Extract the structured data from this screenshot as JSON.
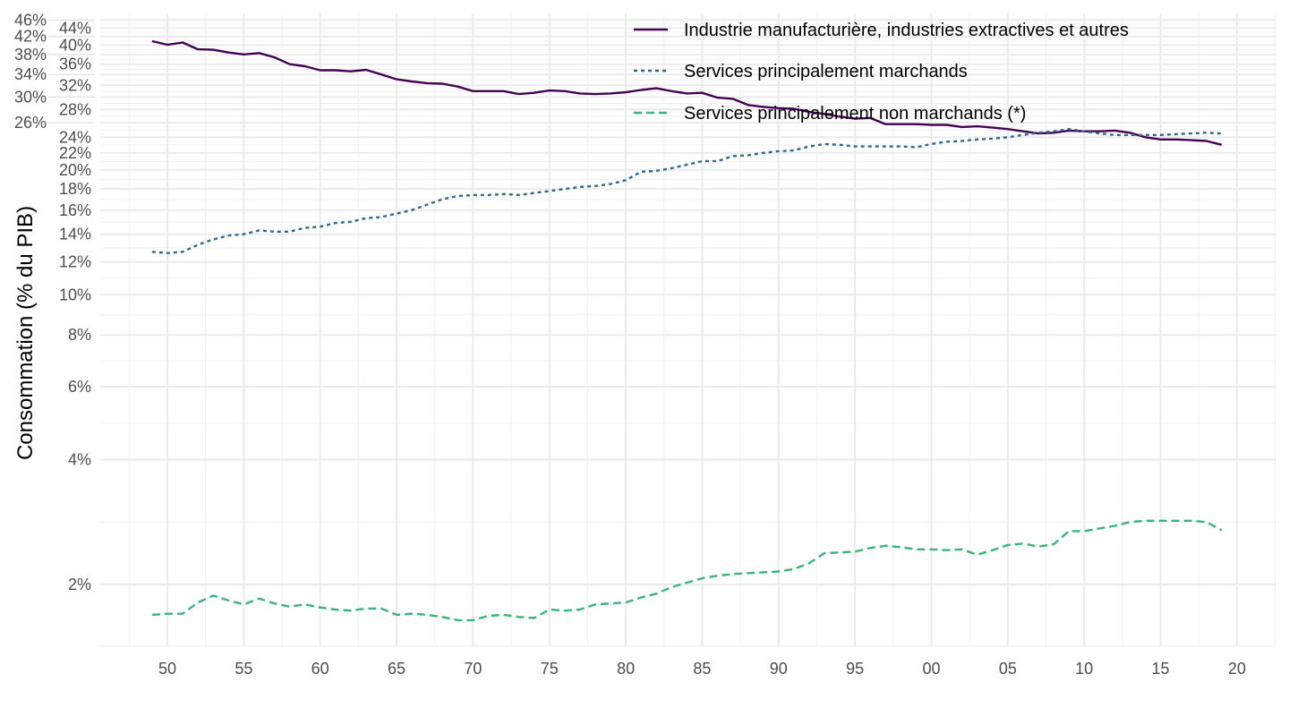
{
  "chart_data": {
    "type": "line",
    "title": "",
    "xlabel": "",
    "ylabel": "Consommation (% du PIB)",
    "y_scale": "log",
    "ylim": [
      1.42,
      47
    ],
    "xlim": [
      1947,
      2022.5
    ],
    "grid": true,
    "legend_position": "top-right",
    "x_ticks": [
      1950,
      1955,
      1960,
      1965,
      1970,
      1975,
      1980,
      1985,
      1990,
      1995,
      2000,
      2005,
      2010,
      2015,
      2020
    ],
    "x_tick_labels": [
      "50",
      "55",
      "60",
      "65",
      "70",
      "75",
      "80",
      "85",
      "90",
      "95",
      "00",
      "05",
      "10",
      "15",
      "20"
    ],
    "y_ticks": [
      2,
      4,
      6,
      8,
      10,
      12,
      14,
      16,
      18,
      20,
      22,
      24,
      26,
      28,
      30,
      32,
      34,
      36,
      38,
      40,
      42,
      44,
      46
    ],
    "y_tick_labels": [
      "2%",
      "4%",
      "6%",
      "8%",
      "10%",
      "12%",
      "14%",
      "16%",
      "18%",
      "20%",
      "22%",
      "24%",
      "26%",
      "28%",
      "30%",
      "32%",
      "34%",
      "36%",
      "38%",
      "40%",
      "42%",
      "44%",
      "46%"
    ],
    "x": [
      1949,
      1950,
      1951,
      1952,
      1953,
      1954,
      1955,
      1956,
      1957,
      1958,
      1959,
      1960,
      1961,
      1962,
      1963,
      1964,
      1965,
      1966,
      1967,
      1968,
      1969,
      1970,
      1971,
      1972,
      1973,
      1974,
      1975,
      1976,
      1977,
      1978,
      1979,
      1980,
      1981,
      1982,
      1983,
      1984,
      1985,
      1986,
      1987,
      1988,
      1989,
      1990,
      1991,
      1992,
      1993,
      1994,
      1995,
      1996,
      1997,
      1998,
      1999,
      2000,
      2001,
      2002,
      2003,
      2004,
      2005,
      2006,
      2007,
      2008,
      2009,
      2010,
      2011,
      2012,
      2013,
      2014,
      2015,
      2016,
      2017,
      2018,
      2019
    ],
    "series": [
      {
        "name": "Industrie manufacturière, industries extractives et autres",
        "color": "#440154",
        "dash": "solid",
        "values": [
          40.9,
          40.1,
          40.6,
          39.1,
          39.0,
          38.4,
          38.0,
          38.3,
          37.4,
          36.0,
          35.6,
          34.8,
          34.8,
          34.6,
          34.9,
          34.0,
          33.1,
          32.7,
          32.4,
          32.3,
          31.8,
          31.0,
          31.0,
          31.0,
          30.5,
          30.7,
          31.1,
          31.0,
          30.6,
          30.5,
          30.6,
          30.8,
          31.2,
          31.5,
          31.0,
          30.6,
          30.7,
          29.9,
          29.7,
          28.7,
          28.4,
          28.2,
          28.1,
          27.6,
          27.3,
          26.9,
          26.6,
          26.7,
          25.8,
          25.8,
          25.8,
          25.7,
          25.7,
          25.4,
          25.5,
          25.3,
          25.1,
          24.8,
          24.5,
          24.6,
          24.9,
          24.8,
          24.8,
          24.9,
          24.6,
          24.0,
          23.7,
          23.7,
          23.6,
          23.5,
          23.0
        ]
      },
      {
        "name": "Services principalement marchands",
        "color": "#31688E",
        "dash": "dotted",
        "values": [
          12.7,
          12.6,
          12.7,
          13.2,
          13.6,
          13.9,
          14.0,
          14.3,
          14.2,
          14.2,
          14.5,
          14.6,
          14.9,
          15.0,
          15.3,
          15.4,
          15.7,
          16.0,
          16.5,
          17.0,
          17.3,
          17.4,
          17.4,
          17.5,
          17.4,
          17.6,
          17.8,
          18.0,
          18.2,
          18.3,
          18.5,
          18.9,
          19.8,
          19.9,
          20.2,
          20.6,
          21.0,
          21.0,
          21.6,
          21.7,
          22.0,
          22.2,
          22.3,
          22.8,
          23.1,
          23.0,
          22.8,
          22.8,
          22.8,
          22.8,
          22.7,
          23.1,
          23.4,
          23.5,
          23.7,
          23.8,
          24.0,
          24.3,
          24.6,
          24.8,
          25.1,
          24.8,
          24.5,
          24.3,
          24.3,
          24.3,
          24.3,
          24.4,
          24.5,
          24.6,
          24.5
        ]
      },
      {
        "name": "Services principalement non marchands (*)",
        "color": "#35B779",
        "dash": "dashed",
        "values": [
          1.69,
          1.7,
          1.7,
          1.81,
          1.88,
          1.83,
          1.79,
          1.85,
          1.8,
          1.77,
          1.79,
          1.76,
          1.74,
          1.73,
          1.75,
          1.75,
          1.69,
          1.7,
          1.69,
          1.67,
          1.64,
          1.64,
          1.68,
          1.69,
          1.67,
          1.66,
          1.74,
          1.73,
          1.74,
          1.79,
          1.8,
          1.81,
          1.86,
          1.9,
          1.97,
          2.02,
          2.07,
          2.1,
          2.12,
          2.13,
          2.14,
          2.15,
          2.18,
          2.25,
          2.38,
          2.39,
          2.4,
          2.45,
          2.48,
          2.46,
          2.43,
          2.43,
          2.42,
          2.43,
          2.36,
          2.42,
          2.49,
          2.51,
          2.47,
          2.5,
          2.69,
          2.69,
          2.73,
          2.77,
          2.83,
          2.85,
          2.85,
          2.85,
          2.85,
          2.83,
          2.7
        ]
      }
    ]
  }
}
